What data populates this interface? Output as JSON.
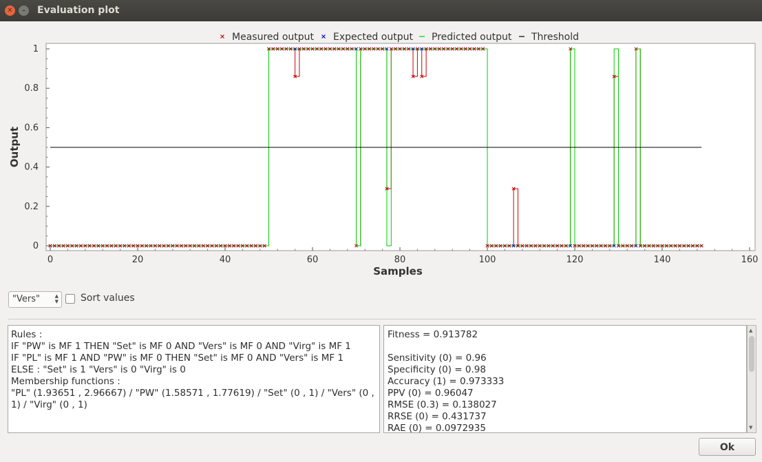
{
  "window": {
    "title": "Evaluation plot"
  },
  "controls": {
    "combo_value": "\"Vers\"",
    "sort_label": "Sort values",
    "sort_checked": false
  },
  "rules_panel": {
    "lines": [
      "Rules :",
      " IF \"PW\" is MF 1 THEN \"Set\" is MF 0 AND \"Vers\" is MF 0 AND \"Virg\" is MF 1",
      " IF \"PL\" is MF 1 AND \"PW\" is MF 0 THEN \"Set\" is MF 0 AND \"Vers\" is MF 1",
      " ELSE : \"Set\" is 1  \"Vers\" is 0  \"Virg\" is 0",
      "Membership functions :",
      "\"PL\" (1.93651 , 2.96667) / \"PW\" (1.58571 , 1.77619) / \"Set\" (0 , 1) / \"Vers\" (0 , 1) / \"Virg\" (0 , 1)"
    ]
  },
  "metrics_panel": {
    "lines": [
      "Fitness = 0.913782",
      "",
      "Sensitivity (0) = 0.96",
      "Specificity (0) = 0.98",
      "Accuracy (1) = 0.973333",
      "PPV  (0) = 0.96047",
      "RMSE (0.3) = 0.138027",
      "RRSE (0) = 0.431737",
      "RAE  (0) = 0.0972935"
    ]
  },
  "ok_label": "Ok",
  "colors": {
    "measured": "#cc0000",
    "expected": "#0000cc",
    "predicted": "#00cc00",
    "threshold": "#000000"
  },
  "chart_data": {
    "type": "line",
    "title": "",
    "xlabel": "Samples",
    "ylabel": "Output",
    "xlim": [
      0,
      160
    ],
    "ylim": [
      0,
      1
    ],
    "xticks": [
      0,
      20,
      40,
      60,
      80,
      100,
      120,
      140,
      160
    ],
    "yticks": [
      0,
      0.2,
      0.4,
      0.6,
      0.8,
      1
    ],
    "n_samples": 150,
    "legend_position": "top",
    "grid": false,
    "threshold": 0.5,
    "series": [
      {
        "name": "Measured output",
        "marker": "x",
        "color": "#cc0000",
        "deviations": [
          [
            56,
            0.86
          ],
          [
            70,
            0
          ],
          [
            77,
            0.29
          ],
          [
            83,
            0.86
          ],
          [
            85,
            0.86
          ],
          [
            106,
            0.29
          ],
          [
            119,
            1
          ],
          [
            129,
            0.86
          ],
          [
            134,
            1
          ]
        ]
      },
      {
        "name": "Expected output",
        "marker": "x",
        "color": "#0000cc",
        "segments": [
          {
            "from": 0,
            "to": 49,
            "value": 0
          },
          {
            "from": 50,
            "to": 99,
            "value": 1
          },
          {
            "from": 100,
            "to": 149,
            "value": 0
          }
        ]
      },
      {
        "name": "Predicted output",
        "marker": "line",
        "color": "#00cc00",
        "deviations": [
          [
            70,
            0
          ],
          [
            77,
            0
          ],
          [
            119,
            1
          ],
          [
            129,
            1
          ],
          [
            134,
            1
          ]
        ]
      },
      {
        "name": "Threshold",
        "marker": "line",
        "color": "#000000"
      }
    ]
  }
}
